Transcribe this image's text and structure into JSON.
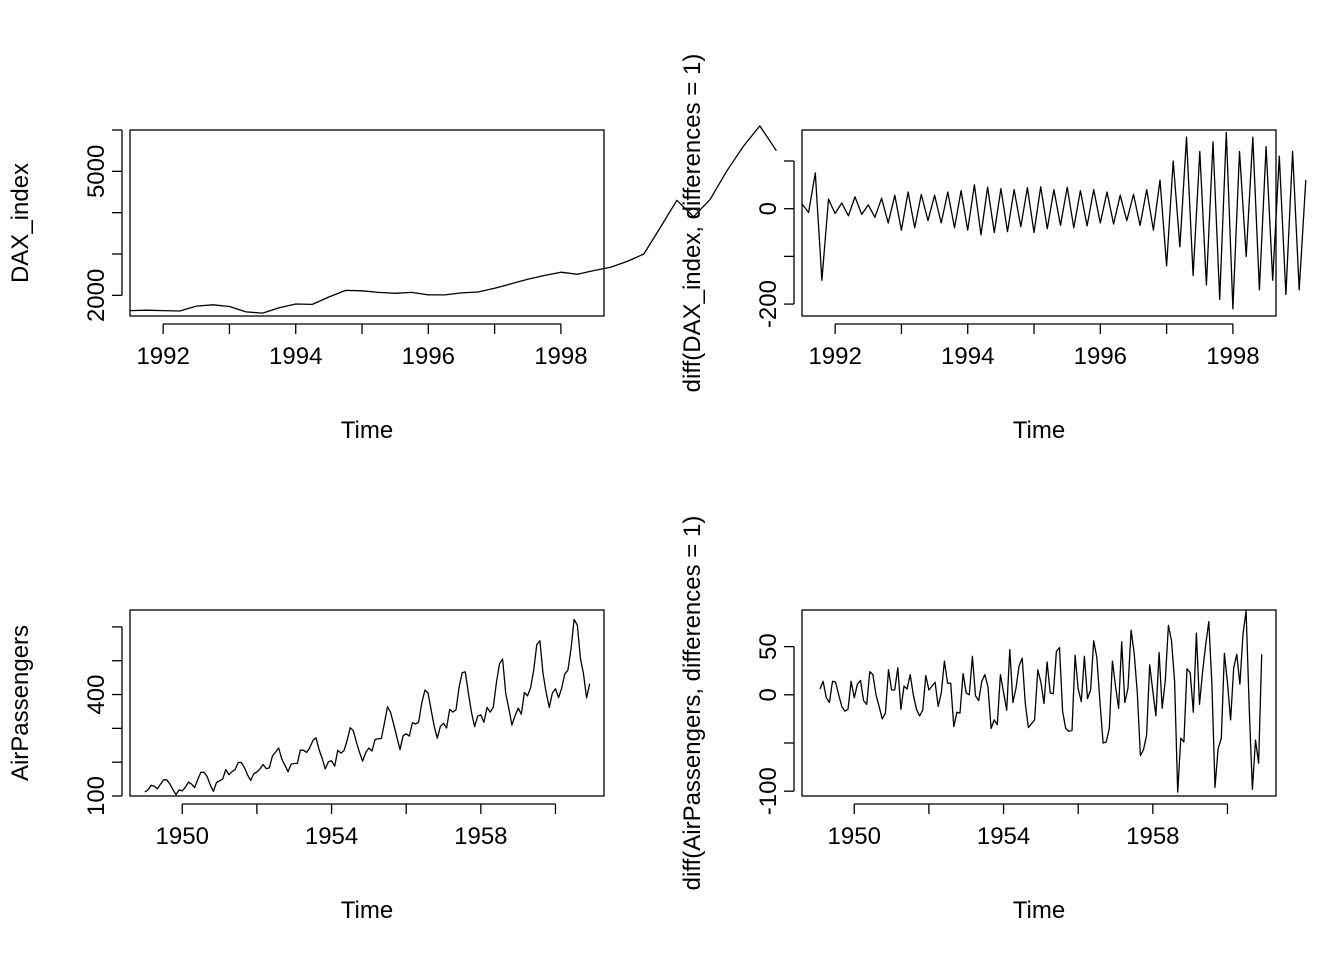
{
  "chart_data": [
    {
      "type": "line",
      "xlabel": "Time",
      "ylabel": "DAX_index",
      "xlim": [
        1991.5,
        1998.65
      ],
      "ylim": [
        1500,
        6000
      ],
      "xticks": [
        1992,
        1993,
        1994,
        1995,
        1996,
        1997,
        1998
      ],
      "xtick_labels": [
        "1992",
        "",
        "1994",
        "",
        "1996",
        "",
        "1998"
      ],
      "yticks": [
        2000,
        3000,
        4000,
        5000,
        6000
      ],
      "ytick_labels": [
        "2000",
        "",
        "",
        "5000",
        ""
      ],
      "x_start": 1991.5,
      "x_step": 0.25,
      "values": [
        1630,
        1640,
        1630,
        1620,
        1740,
        1770,
        1730,
        1600,
        1570,
        1700,
        1790,
        1780,
        1960,
        2120,
        2110,
        2070,
        2050,
        2070,
        2010,
        2010,
        2060,
        2080,
        2170,
        2280,
        2390,
        2480,
        2560,
        2510,
        2600,
        2680,
        2820,
        3000,
        3640,
        4300,
        3900,
        4320,
        5000,
        5600,
        6100,
        5500
      ]
    },
    {
      "type": "line",
      "xlabel": "Time",
      "ylabel": "diff(DAX_index, differences = 1)",
      "xlim": [
        1991.5,
        1998.65
      ],
      "ylim": [
        -225,
        165
      ],
      "xticks": [
        1992,
        1993,
        1994,
        1995,
        1996,
        1997,
        1998
      ],
      "xtick_labels": [
        "1992",
        "",
        "1994",
        "",
        "1996",
        "",
        "1998"
      ],
      "yticks": [
        -200,
        -100,
        0,
        100
      ],
      "ytick_labels": [
        "-200",
        "",
        "0",
        ""
      ],
      "x_start": 1991.5,
      "x_step": 0.1,
      "values": [
        10,
        -8,
        75,
        -150,
        20,
        -10,
        12,
        -15,
        25,
        -12,
        8,
        -18,
        22,
        -30,
        28,
        -45,
        35,
        -40,
        30,
        -25,
        28,
        -30,
        35,
        -40,
        38,
        -45,
        50,
        -55,
        45,
        -50,
        42,
        -48,
        40,
        -38,
        44,
        -50,
        46,
        -42,
        40,
        -35,
        45,
        -40,
        38,
        -36,
        40,
        -30,
        35,
        -32,
        28,
        -25,
        30,
        -35,
        40,
        -45,
        60,
        -120,
        100,
        -80,
        150,
        -140,
        120,
        -160,
        140,
        -190,
        160,
        -210,
        120,
        -100,
        150,
        -170,
        130,
        -150,
        110,
        -180,
        120,
        -170,
        60
      ]
    },
    {
      "type": "line",
      "xlabel": "Time",
      "ylabel": "AirPassengers",
      "xlim": [
        1948.6,
        1961.3
      ],
      "ylim": [
        100,
        650
      ],
      "xticks": [
        1950,
        1952,
        1954,
        1956,
        1958,
        1960
      ],
      "xtick_labels": [
        "1950",
        "",
        "1954",
        "",
        "1958",
        ""
      ],
      "yticks": [
        100,
        200,
        300,
        400,
        500,
        600
      ],
      "ytick_labels": [
        "100",
        "",
        "",
        "400",
        "",
        ""
      ],
      "x_start": 1949,
      "x_step": 0.0833333,
      "values": [
        112,
        118,
        132,
        129,
        121,
        135,
        148,
        148,
        136,
        119,
        104,
        118,
        115,
        126,
        141,
        135,
        125,
        149,
        170,
        170,
        158,
        133,
        114,
        140,
        145,
        150,
        178,
        163,
        172,
        178,
        199,
        199,
        184,
        162,
        146,
        166,
        171,
        180,
        193,
        181,
        183,
        218,
        230,
        242,
        209,
        191,
        172,
        194,
        196,
        196,
        236,
        235,
        229,
        243,
        264,
        272,
        237,
        211,
        180,
        201,
        204,
        188,
        235,
        227,
        234,
        264,
        302,
        293,
        259,
        229,
        203,
        229,
        242,
        233,
        267,
        269,
        270,
        315,
        364,
        347,
        312,
        274,
        237,
        278,
        284,
        277,
        317,
        313,
        318,
        374,
        413,
        405,
        355,
        306,
        271,
        306,
        315,
        301,
        356,
        348,
        355,
        422,
        465,
        467,
        404,
        347,
        305,
        336,
        340,
        318,
        362,
        348,
        363,
        435,
        491,
        505,
        404,
        359,
        310,
        337,
        360,
        342,
        406,
        396,
        420,
        472,
        548,
        559,
        463,
        407,
        362,
        405,
        417,
        391,
        419,
        461,
        472,
        535,
        622,
        606,
        508,
        461,
        390,
        432
      ]
    },
    {
      "type": "line",
      "xlabel": "Time",
      "ylabel": "diff(AirPassengers, differences = 1)",
      "xlim": [
        1948.6,
        1961.3
      ],
      "ylim": [
        -105,
        88
      ],
      "xticks": [
        1950,
        1952,
        1954,
        1956,
        1958,
        1960
      ],
      "xtick_labels": [
        "1950",
        "",
        "1954",
        "",
        "1958",
        ""
      ],
      "yticks": [
        -100,
        -50,
        0,
        50
      ],
      "ytick_labels": [
        "-100",
        "",
        "0",
        "50"
      ],
      "x_start": 1949.0833,
      "x_step": 0.0833333,
      "values": [
        6,
        14,
        -3,
        -8,
        14,
        13,
        0,
        -12,
        -17,
        -15,
        14,
        -3,
        11,
        15,
        -6,
        -10,
        24,
        21,
        0,
        -12,
        -25,
        -19,
        26,
        5,
        5,
        28,
        -15,
        9,
        6,
        21,
        0,
        -15,
        -22,
        -16,
        20,
        5,
        9,
        13,
        -12,
        2,
        35,
        12,
        12,
        -33,
        -18,
        -19,
        22,
        2,
        0,
        40,
        -1,
        -6,
        14,
        21,
        8,
        -35,
        -26,
        -31,
        21,
        3,
        -16,
        47,
        -8,
        7,
        30,
        38,
        -9,
        -34,
        -30,
        -26,
        26,
        13,
        -9,
        34,
        2,
        1,
        45,
        49,
        -17,
        -35,
        -38,
        -37,
        41,
        6,
        -7,
        40,
        -4,
        5,
        56,
        39,
        -8,
        -50,
        -49,
        -35,
        35,
        9,
        -14,
        55,
        -8,
        7,
        67,
        43,
        2,
        -63,
        -57,
        -42,
        31,
        4,
        -22,
        44,
        -14,
        15,
        72,
        56,
        14,
        -101,
        -45,
        -49,
        27,
        23,
        -18,
        64,
        -10,
        24,
        52,
        76,
        11,
        -96,
        -56,
        -45,
        43,
        12,
        -26,
        28,
        42,
        11,
        63,
        87,
        -16,
        -98,
        -47,
        -71,
        42
      ]
    }
  ]
}
